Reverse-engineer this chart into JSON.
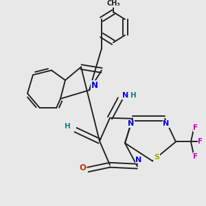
{
  "bg_color": "#e8e8e8",
  "bond_color": "#222222",
  "N_color": "#0000ee",
  "O_color": "#cc3300",
  "S_color": "#aaaa00",
  "F_color": "#cc00cc",
  "H_color": "#008888",
  "figsize": [
    3.0,
    3.0
  ],
  "dpi": 100,
  "xlim": [
    0,
    300
  ],
  "ylim": [
    0,
    300
  ]
}
